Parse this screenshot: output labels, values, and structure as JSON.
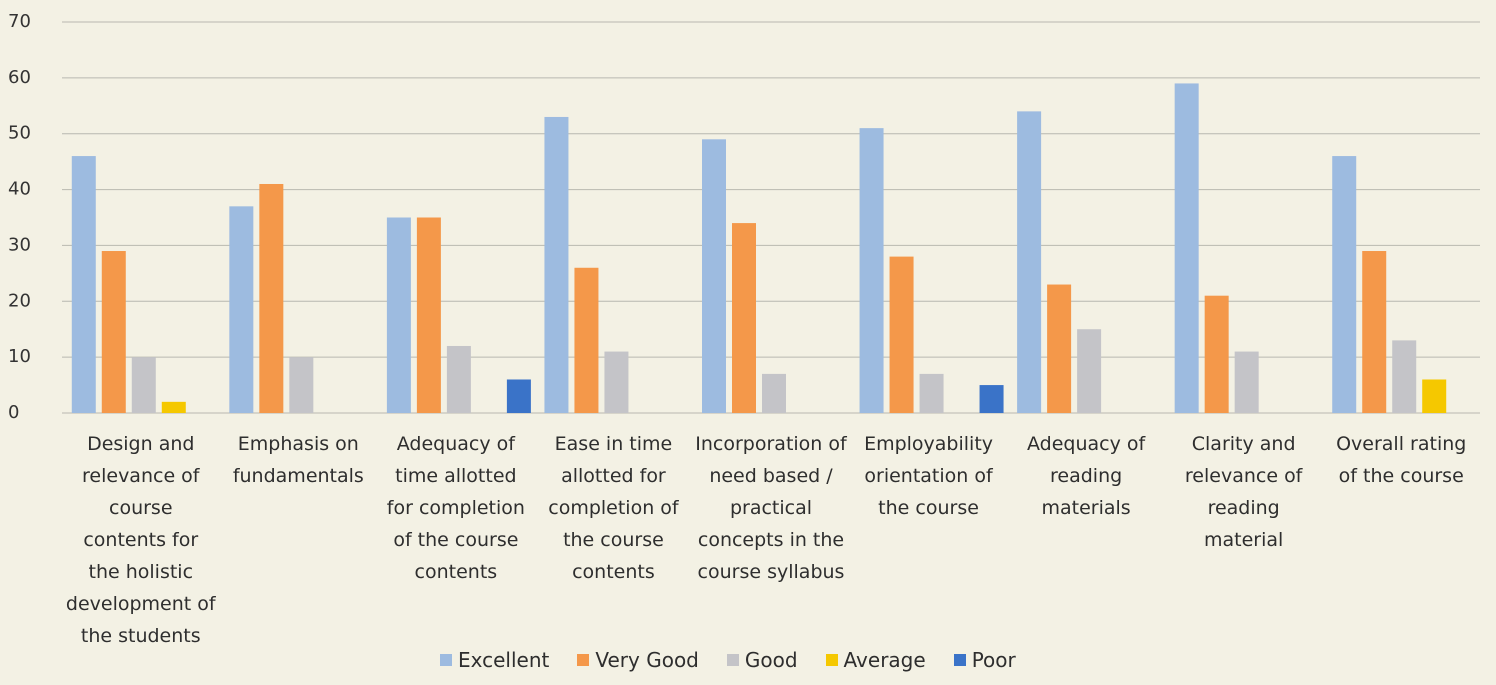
{
  "chart_data": {
    "type": "bar",
    "categories": [
      "Design and relevance of course contents for the holistic development of the students",
      "Emphasis on fundamentals",
      "Adequacy of time allotted for completion of the course contents",
      "Ease in time allotted for completion of the course contents",
      "Incorporation of need based / practical concepts in the course syllabus",
      "Employability orientation of the course",
      "Adequacy of reading materials",
      "Clarity and relevance of reading material",
      "Overall rating of the course"
    ],
    "series": [
      {
        "name": "Excellent",
        "color": "#9dbbe0",
        "values": [
          46,
          37,
          35,
          53,
          49,
          51,
          54,
          59,
          46
        ]
      },
      {
        "name": "Very Good",
        "color": "#f4984a",
        "values": [
          29,
          41,
          35,
          26,
          34,
          28,
          23,
          21,
          29
        ]
      },
      {
        "name": "Good",
        "color": "#c4c4c8",
        "values": [
          10,
          10,
          12,
          11,
          7,
          7,
          15,
          11,
          13
        ]
      },
      {
        "name": "Average",
        "color": "#f5c800",
        "values": [
          2,
          0,
          0,
          0,
          0,
          0,
          0,
          0,
          6
        ]
      },
      {
        "name": "Poor",
        "color": "#3a73c8",
        "values": [
          0,
          0,
          6,
          0,
          0,
          5,
          0,
          0,
          0
        ]
      }
    ],
    "ylim": [
      0,
      70
    ],
    "yticks": [
      0,
      10,
      20,
      30,
      40,
      50,
      60,
      70
    ],
    "grid": true,
    "legend": "bottom"
  }
}
